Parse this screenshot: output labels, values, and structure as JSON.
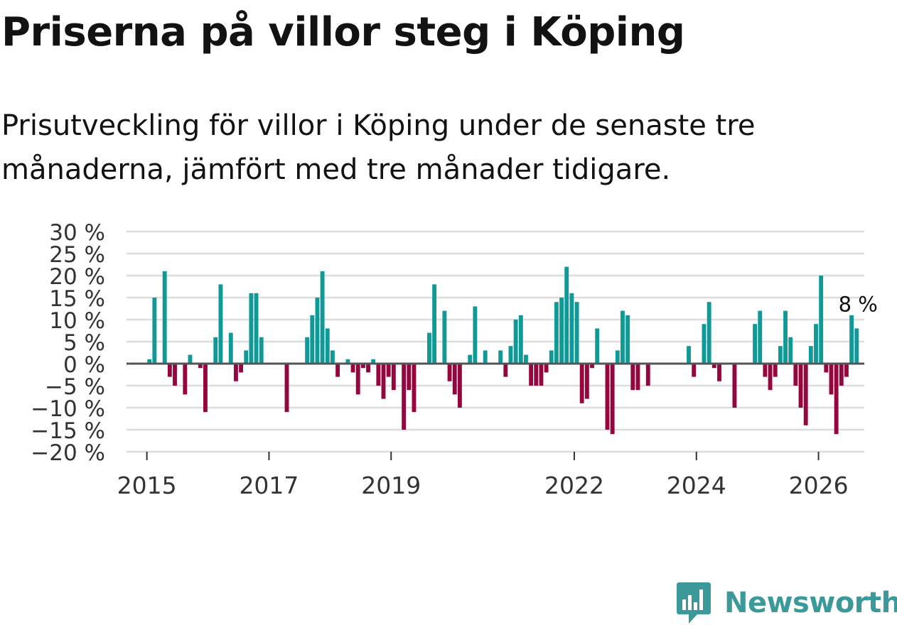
{
  "header": {
    "title": "Priserna på villor steg i Köping",
    "subtitle": "Prisutveckling för villor i Köping under de senaste tre månaderna, jämfört med tre månader tidigare."
  },
  "branding": {
    "logo_text": "Newsworthy",
    "logo_color": "#3b9a99"
  },
  "colors": {
    "positive": "#0f9a98",
    "negative": "#95063f",
    "grid": "#dddddd",
    "zero_line": "#555555",
    "text": "#333333"
  },
  "chart_data": {
    "type": "bar",
    "title": "Priserna på villor steg i Köping",
    "xlabel": "",
    "ylabel": "",
    "ylim": [
      -20,
      30
    ],
    "yticks": [
      -20,
      -15,
      -10,
      -5,
      0,
      5,
      10,
      15,
      20,
      25,
      30
    ],
    "ytick_labels": [
      "−20 %",
      "−15 %",
      "−10 %",
      "−5 %",
      "0 %",
      "5 %",
      "10 %",
      "15 %",
      "20 %",
      "25 %",
      "30 %"
    ],
    "xticks": [
      2015,
      2017,
      2019,
      2022,
      2024,
      2026
    ],
    "xtick_labels": [
      "2015",
      "2017",
      "2019",
      "2022",
      "2024",
      "2026"
    ],
    "grid": true,
    "start": "2014-09",
    "frequency": "monthly",
    "values": [
      0,
      0,
      0,
      0,
      1,
      15,
      0,
      21,
      -3,
      -5,
      0,
      -7,
      2,
      0,
      -1,
      -11,
      0,
      6,
      18,
      0,
      7,
      -4,
      -2,
      3,
      16,
      16,
      6,
      0,
      0,
      0,
      0,
      -11,
      0,
      0,
      0,
      6,
      11,
      15,
      21,
      8,
      3,
      -3,
      0,
      1,
      -2,
      -7,
      -1,
      -2,
      1,
      -5,
      -8,
      -3,
      -6,
      0,
      -15,
      -6,
      -11,
      0,
      0,
      7,
      18,
      0,
      12,
      -4,
      -7,
      -10,
      0,
      2,
      13,
      0,
      3,
      0,
      0,
      3,
      -3,
      4,
      10,
      11,
      2,
      -5,
      -5,
      -5,
      -2,
      3,
      14,
      15,
      22,
      16,
      14,
      -9,
      -8,
      -1,
      8,
      0,
      -15,
      -16,
      3,
      12,
      11,
      -6,
      -6,
      0,
      -5,
      0,
      0,
      0,
      0,
      0,
      0,
      0,
      4,
      -3,
      0,
      9,
      14,
      -1,
      -4,
      0,
      0,
      -10,
      0,
      0,
      0,
      9,
      12,
      -3,
      -6,
      -3,
      4,
      12,
      6,
      -5,
      -10,
      -14,
      4,
      9,
      20,
      -2,
      -7,
      -16,
      -5,
      -3,
      11,
      8
    ],
    "annotation": {
      "label": "8 %",
      "value": 8,
      "position": "last-bar"
    }
  }
}
